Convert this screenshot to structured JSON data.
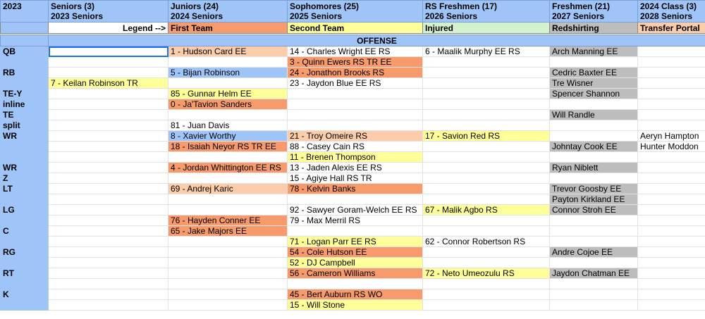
{
  "header": {
    "corner": "2023",
    "columns": [
      {
        "title": "Seniors (3)",
        "subtitle": "2023 Seniors"
      },
      {
        "title": "Juniors (24)",
        "subtitle": "2024 Seniors"
      },
      {
        "title": "Sophomores (25)",
        "subtitle": "2025 Seniors"
      },
      {
        "title": "RS Freshmen (17)",
        "subtitle": "2026 Seniors"
      },
      {
        "title": "Freshmen (21)",
        "subtitle": "2027 Seniors"
      },
      {
        "title": "2024 Class (3)",
        "subtitle": "2028 Seniors"
      }
    ]
  },
  "legend": {
    "label": "Legend -->",
    "items": [
      {
        "text": "First Team",
        "color": "#f79a6c"
      },
      {
        "text": "Second Team",
        "color": "#ffff99"
      },
      {
        "text": "Injured",
        "color": "#d5f2cf"
      },
      {
        "text": "Redshirting",
        "color": "#bdbdbd"
      },
      {
        "text": "Transfer Portal",
        "color": "#fbcdaa"
      }
    ]
  },
  "section": "OFFENSE",
  "rows": [
    {
      "position": "QB",
      "cells": [
        null,
        {
          "text": "1 - Hudson Card EE",
          "color": "#fbcdaa"
        },
        {
          "text": "14 - Charles Wright EE RS"
        },
        {
          "text": "6 - Maalik Murphy EE RS"
        },
        {
          "text": "Arch Manning EE",
          "color": "#bdbdbd"
        },
        null
      ]
    },
    {
      "cells": [
        null,
        null,
        {
          "text": "3 - Quinn Ewers RS TR EE",
          "color": "#f79a6c"
        },
        null,
        null,
        null
      ]
    },
    {
      "position": "RB",
      "cells": [
        null,
        {
          "text": "5 - Bijan Robinson",
          "color": "#9fc5f8"
        },
        {
          "text": "24 - Jonathon Brooks RS",
          "color": "#f79a6c"
        },
        null,
        {
          "text": "Cedric Baxter EE",
          "color": "#bdbdbd"
        },
        null
      ]
    },
    {
      "cells": [
        {
          "text": "7 - Keilan Robinson TR",
          "color": "#ffff99"
        },
        null,
        {
          "text": "23 - Jaydon Blue EE RS"
        },
        null,
        {
          "text": "Tre Wisner",
          "color": "#bdbdbd"
        },
        null
      ]
    },
    {
      "position": "TE-Y",
      "cells": [
        null,
        {
          "text": "85 - Gunnar Helm EE",
          "color": "#ffff99"
        },
        null,
        null,
        {
          "text": "Spencer Shannon",
          "color": "#bdbdbd"
        },
        null
      ]
    },
    {
      "position": "inline",
      "cells": [
        null,
        {
          "text": "0 - Ja'Tavion Sanders",
          "color": "#f79a6c"
        },
        null,
        null,
        null,
        null
      ]
    },
    {
      "position": "TE",
      "cells": [
        null,
        null,
        null,
        null,
        {
          "text": "Will Randle",
          "color": "#bdbdbd"
        },
        null
      ]
    },
    {
      "position": "split",
      "cells": [
        null,
        {
          "text": "81 - Juan Davis"
        },
        null,
        null,
        null,
        null
      ]
    },
    {
      "position": "WR",
      "cells": [
        null,
        {
          "text": "8 - Xavier Worthy",
          "color": "#9fc5f8"
        },
        {
          "text": "21 - Troy Omeire RS",
          "color": "#fbcdaa"
        },
        {
          "text": "17 - Savion Red RS",
          "color": "#ffff99"
        },
        null,
        {
          "text": "Aeryn Hampton"
        }
      ]
    },
    {
      "cells": [
        null,
        {
          "text": "18 - Isaiah Neyor RS TR EE",
          "color": "#f79a6c"
        },
        {
          "text": "88 - Casey Cain RS"
        },
        null,
        {
          "text": "Johntay Cook EE",
          "color": "#bdbdbd"
        },
        {
          "text": "Hunter Moddon"
        }
      ]
    },
    {
      "cells": [
        null,
        null,
        {
          "text": "11 - Brenen Thompson",
          "color": "#ffff99"
        },
        null,
        null,
        null
      ]
    },
    {
      "position": "WR",
      "cells": [
        null,
        {
          "text": "4 - Jordan Whittington EE RS",
          "color": "#f79a6c"
        },
        {
          "text": "13 - Jaden Alexis EE RS"
        },
        null,
        {
          "text": "Ryan Niblett",
          "color": "#bdbdbd"
        },
        null
      ]
    },
    {
      "position": "Z",
      "cells": [
        null,
        null,
        {
          "text": "15 - Agiye Hall RS TR"
        },
        null,
        null,
        null
      ]
    },
    {
      "position": "LT",
      "cells": [
        null,
        {
          "text": "69 - Andrej Karic",
          "color": "#fbcdaa"
        },
        {
          "text": "78 - Kelvin Banks",
          "color": "#f79a6c"
        },
        null,
        {
          "text": "Trevor Goosby EE",
          "color": "#bdbdbd"
        },
        null
      ]
    },
    {
      "cells": [
        null,
        null,
        null,
        null,
        {
          "text": "Payton Kirkland EE",
          "color": "#bdbdbd"
        },
        null
      ]
    },
    {
      "position": "LG",
      "cells": [
        null,
        null,
        {
          "text": "92 - Sawyer Goram-Welch EE RS"
        },
        {
          "text": "67 - Malik Agbo RS",
          "color": "#ffff99"
        },
        {
          "text": "Connor Stroh EE",
          "color": "#bdbdbd"
        },
        null
      ]
    },
    {
      "cells": [
        null,
        {
          "text": "76 - Hayden Conner EE",
          "color": "#f79a6c"
        },
        {
          "text": "79 - Max Merril RS"
        },
        null,
        null,
        null
      ]
    },
    {
      "position": "C",
      "cells": [
        null,
        {
          "text": "65 - Jake Majors EE",
          "color": "#f79a6c"
        },
        null,
        null,
        null,
        null
      ]
    },
    {
      "cells": [
        null,
        null,
        {
          "text": "71 - Logan Parr EE RS",
          "color": "#ffff99"
        },
        {
          "text": "62 - Connor Robertson RS"
        },
        null,
        null
      ]
    },
    {
      "position": "RG",
      "cells": [
        null,
        null,
        {
          "text": "54 - Cole Hutson EE",
          "color": "#f79a6c"
        },
        null,
        {
          "text": "Andre Cojoe EE",
          "color": "#bdbdbd"
        },
        null
      ]
    },
    {
      "cells": [
        null,
        null,
        {
          "text": "52 - DJ Campbell",
          "color": "#ffff99"
        },
        null,
        null,
        null
      ]
    },
    {
      "position": "RT",
      "cells": [
        null,
        null,
        {
          "text": "56 - Cameron Williams",
          "color": "#f79a6c"
        },
        {
          "text": "72 - Neto Umeozulu RS",
          "color": "#ffff99"
        },
        {
          "text": "Jaydon Chatman EE",
          "color": "#bdbdbd"
        },
        null
      ]
    },
    {
      "cells": [
        null,
        null,
        null,
        null,
        null,
        null
      ]
    },
    {
      "position": "K",
      "cells": [
        null,
        null,
        {
          "text": "45 - Bert Auburn RS WO",
          "color": "#f79a6c"
        },
        null,
        null,
        null
      ]
    },
    {
      "cells": [
        null,
        null,
        {
          "text": "15 - Will Stone",
          "color": "#ffff99"
        },
        null,
        null,
        null
      ]
    }
  ]
}
